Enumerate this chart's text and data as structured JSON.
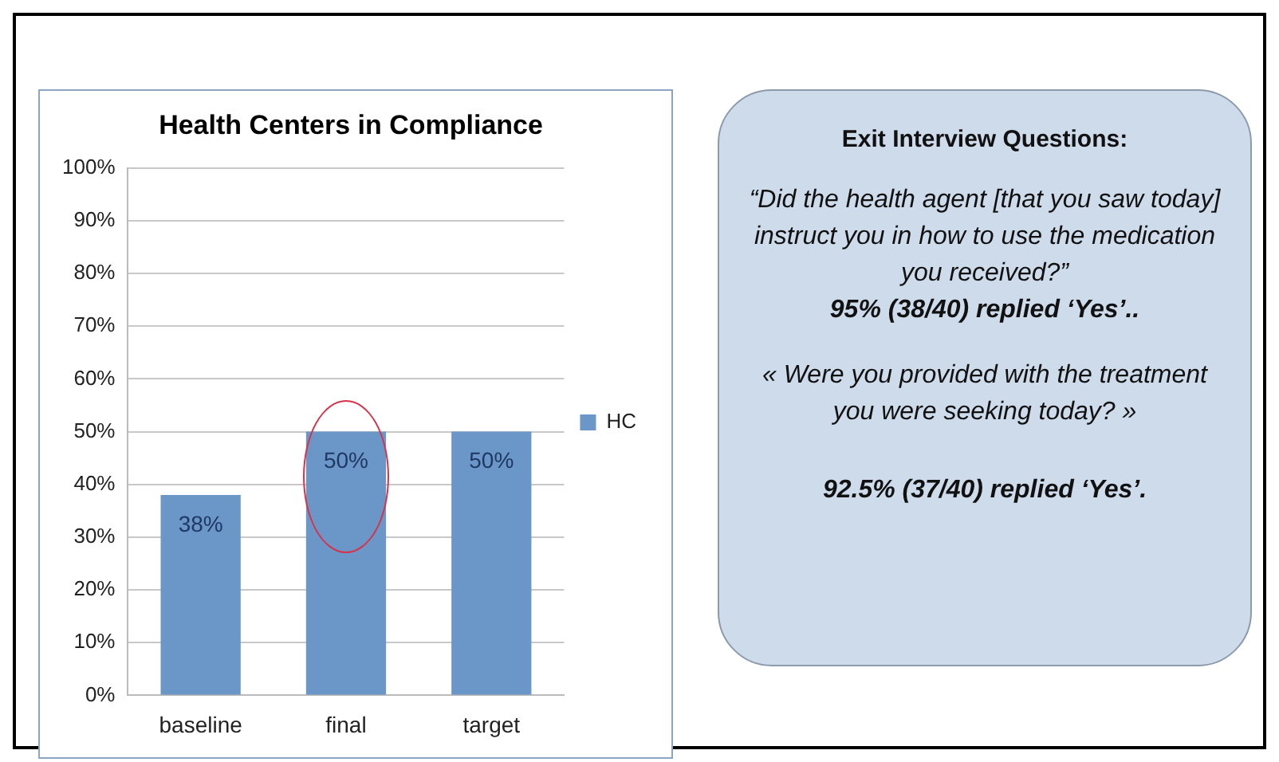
{
  "chart_data": [
    {
      "type": "bar",
      "title": "Health Centers in Compliance",
      "categories": [
        "baseline",
        "final",
        "target"
      ],
      "series": [
        {
          "name": "HC",
          "color": "#6a96c8",
          "values": [
            38,
            50,
            50
          ],
          "value_labels": [
            "38%",
            "50%",
            "50%"
          ]
        }
      ],
      "ylim": [
        0,
        100
      ],
      "yticks": [
        {
          "value": 0,
          "label": "0%"
        },
        {
          "value": 10,
          "label": "10%"
        },
        {
          "value": 20,
          "label": "20%"
        },
        {
          "value": 30,
          "label": "30%"
        },
        {
          "value": 40,
          "label": "40%"
        },
        {
          "value": 50,
          "label": "50%"
        },
        {
          "value": 60,
          "label": "60%"
        },
        {
          "value": 70,
          "label": "70%"
        },
        {
          "value": 80,
          "label": "80%"
        },
        {
          "value": 90,
          "label": "90%"
        },
        {
          "value": 100,
          "label": "100%"
        }
      ],
      "grid": "y",
      "legend": "right"
    },
    {
      "type": "other",
      "title": "Exit Interview Questions:",
      "annotations": [
        "“Did the health agent [that you saw today] instruct you in how to use the medication you received?”",
        "95% (38/40) replied ‘Yes’..",
        "« Were you provided with the treatment you were seeking today? »",
        "92.5% (37/40) replied ‘Yes’."
      ]
    }
  ]
}
